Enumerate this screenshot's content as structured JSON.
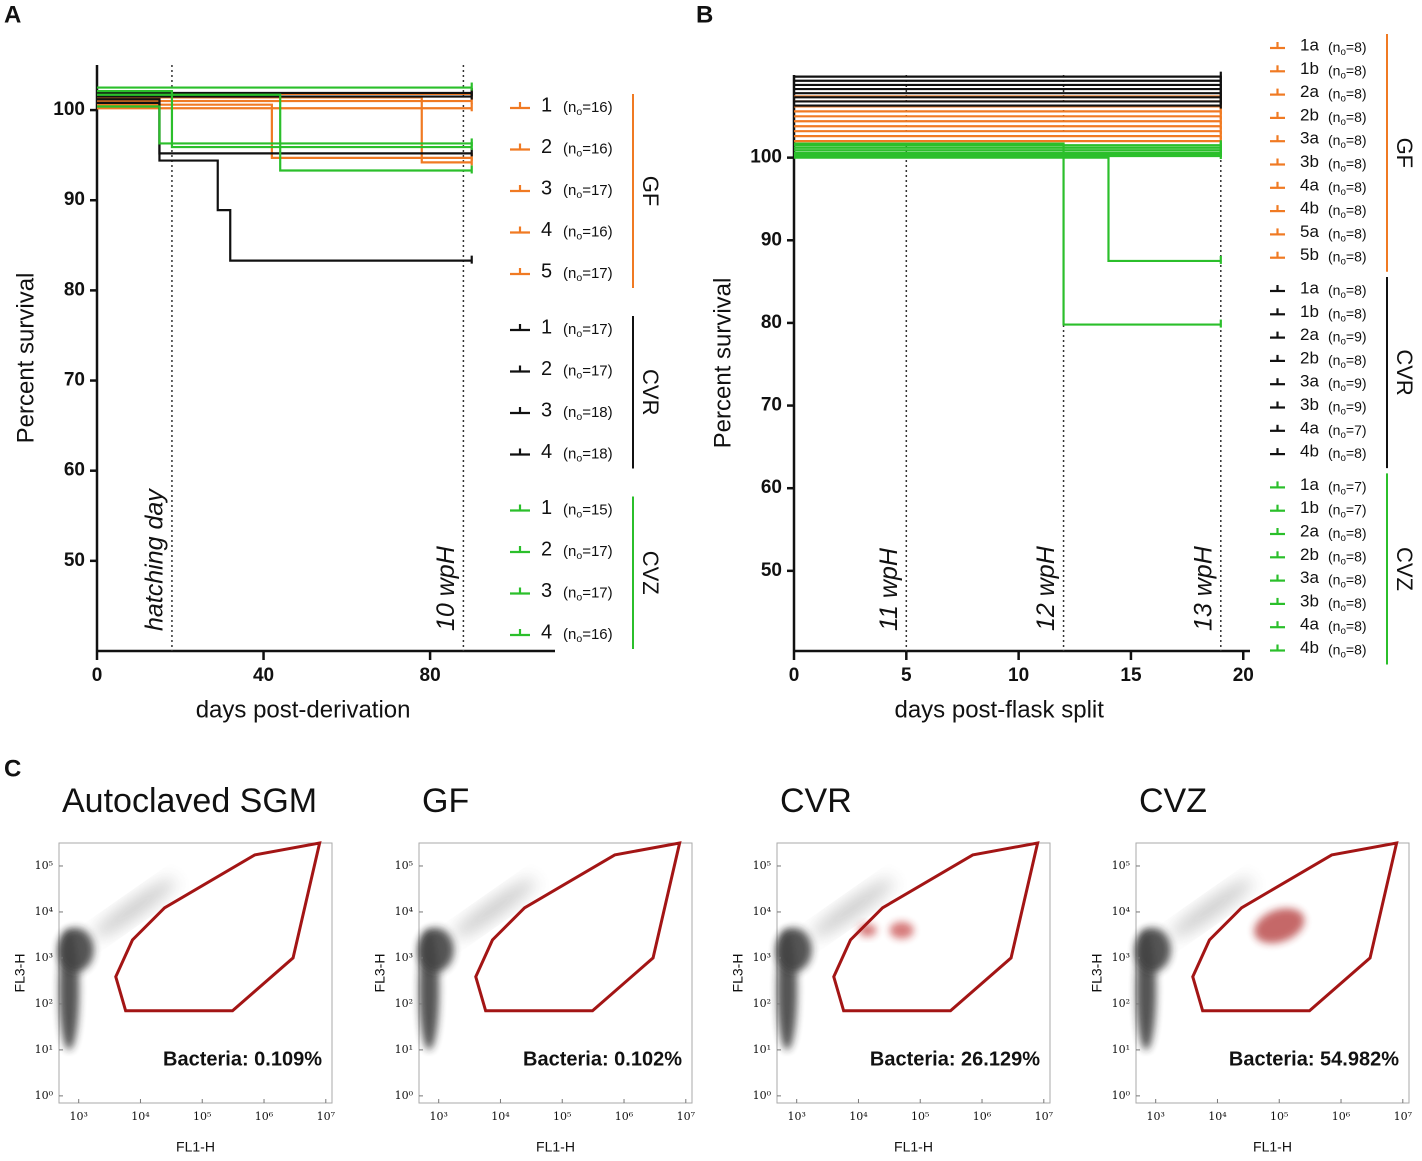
{
  "panel_labels": [
    "A",
    "B",
    "C"
  ],
  "chart_data": [
    {
      "type": "survival",
      "xlabel": "days post-derivation",
      "ylabel": "Percent survival",
      "xlim": [
        0,
        110
      ],
      "ylim": [
        40,
        105
      ],
      "xticks": [
        0,
        40,
        80
      ],
      "yticks": [
        50,
        60,
        70,
        80,
        90,
        100
      ],
      "annotations": [
        {
          "x": 18,
          "label": "hatching day"
        },
        {
          "x": 88,
          "label": "10 wpH"
        }
      ],
      "groups": [
        {
          "name": "GF",
          "color": "#f07a23",
          "series": [
            {
              "name": "1",
              "n_label": "(no=16)",
              "x": [
                0,
                90
              ],
              "values": [
                100.2,
                100.2
              ]
            },
            {
              "name": "2",
              "n_label": "(no=16)",
              "x": [
                0,
                42,
                90
              ],
              "values": [
                100.6,
                94.7,
                94.7
              ]
            },
            {
              "name": "3",
              "n_label": "(no=17)",
              "x": [
                0,
                90
              ],
              "values": [
                101,
                101
              ]
            },
            {
              "name": "4",
              "n_label": "(no=16)",
              "x": [
                0,
                78,
                90
              ],
              "values": [
                101.4,
                94.2,
                94.2
              ]
            },
            {
              "name": "5",
              "n_label": "(no=17)",
              "x": [
                0,
                90
              ],
              "values": [
                101.8,
                101.8
              ]
            }
          ]
        },
        {
          "name": "CVR",
          "color": "#111111",
          "series": [
            {
              "name": "1",
              "n_label": "(no=17)",
              "x": [
                0,
                90
              ],
              "values": [
                101.9,
                101.9
              ]
            },
            {
              "name": "2",
              "n_label": "(no=17)",
              "x": [
                0,
                90
              ],
              "values": [
                101.5,
                101.5
              ]
            },
            {
              "name": "3",
              "n_label": "(no=18)",
              "x": [
                0,
                15,
                90
              ],
              "values": [
                101.2,
                95.2,
                95.2
              ]
            },
            {
              "name": "4",
              "n_label": "(no=18)",
              "x": [
                0,
                15,
                29,
                32,
                90
              ],
              "values": [
                100.8,
                94.4,
                88.9,
                83.3,
                83.3
              ]
            }
          ]
        },
        {
          "name": "CVZ",
          "color": "#2bbf2b",
          "series": [
            {
              "name": "1",
              "n_label": "(no=15)",
              "x": [
                0,
                90
              ],
              "values": [
                102.5,
                102.5
              ]
            },
            {
              "name": "2",
              "n_label": "(no=17)",
              "x": [
                0,
                18,
                90
              ],
              "values": [
                102.1,
                95.9,
                95.9
              ]
            },
            {
              "name": "3",
              "n_label": "(no=17)",
              "x": [
                0,
                44,
                90
              ],
              "values": [
                101.7,
                93.3,
                93.3
              ]
            },
            {
              "name": "4",
              "n_label": "(no=16)",
              "x": [
                0,
                15,
                90
              ],
              "values": [
                100.4,
                96.3,
                96.3
              ]
            }
          ]
        }
      ]
    },
    {
      "type": "survival",
      "xlabel": "days post-flask split",
      "ylabel": "Percent survival",
      "xlim": [
        0,
        20.3
      ],
      "ylim": [
        40.3,
        110
      ],
      "xticks": [
        0,
        5,
        10,
        15,
        20
      ],
      "yticks": [
        50,
        60,
        70,
        80,
        90,
        100
      ],
      "annotations": [
        {
          "x": 5,
          "label": "11 wpH"
        },
        {
          "x": 12,
          "label": "12 wpH"
        },
        {
          "x": 19,
          "label": "13 wpH"
        }
      ],
      "groups": [
        {
          "name": "GF",
          "color": "#f07a23",
          "series": [
            {
              "name": "1a",
              "n_label": "(no=8)",
              "x": [
                0,
                19
              ],
              "values": [
                107.4,
                107.4
              ]
            },
            {
              "name": "1b",
              "n_label": "(no=8)",
              "x": [
                0,
                19
              ],
              "values": [
                106.8,
                106.8
              ]
            },
            {
              "name": "2a",
              "n_label": "(no=8)",
              "x": [
                0,
                19
              ],
              "values": [
                106.2,
                106.2
              ]
            },
            {
              "name": "2b",
              "n_label": "(no=8)",
              "x": [
                0,
                19
              ],
              "values": [
                105.6,
                105.6
              ]
            },
            {
              "name": "3a",
              "n_label": "(no=8)",
              "x": [
                0,
                19
              ],
              "values": [
                105,
                105
              ]
            },
            {
              "name": "3b",
              "n_label": "(no=8)",
              "x": [
                0,
                19
              ],
              "values": [
                104.4,
                104.4
              ]
            },
            {
              "name": "4a",
              "n_label": "(no=8)",
              "x": [
                0,
                19
              ],
              "values": [
                103.8,
                103.8
              ]
            },
            {
              "name": "4b",
              "n_label": "(no=8)",
              "x": [
                0,
                19
              ],
              "values": [
                103.2,
                103.2
              ]
            },
            {
              "name": "5a",
              "n_label": "(no=8)",
              "x": [
                0,
                19
              ],
              "values": [
                102.6,
                102.6
              ]
            },
            {
              "name": "5b",
              "n_label": "(no=8)",
              "x": [
                0,
                19
              ],
              "values": [
                102,
                102
              ]
            }
          ]
        },
        {
          "name": "CVR",
          "color": "#111111",
          "series": [
            {
              "name": "1a",
              "n_label": "(no=8)",
              "x": [
                0,
                19
              ],
              "values": [
                109.8,
                109.8
              ]
            },
            {
              "name": "1b",
              "n_label": "(no=8)",
              "x": [
                0,
                19
              ],
              "values": [
                109.3,
                109.3
              ]
            },
            {
              "name": "2a",
              "n_label": "(no=9)",
              "x": [
                0,
                19
              ],
              "values": [
                108.8,
                108.8
              ]
            },
            {
              "name": "2b",
              "n_label": "(no=8)",
              "x": [
                0,
                19
              ],
              "values": [
                108.3,
                108.3
              ]
            },
            {
              "name": "3a",
              "n_label": "(no=9)",
              "x": [
                0,
                19
              ],
              "values": [
                107.8,
                107.8
              ]
            },
            {
              "name": "3b",
              "n_label": "(no=9)",
              "x": [
                0,
                19
              ],
              "values": [
                107.3,
                107.3
              ]
            },
            {
              "name": "4a",
              "n_label": "(no=7)",
              "x": [
                0,
                19
              ],
              "values": [
                106.8,
                106.8
              ]
            },
            {
              "name": "4b",
              "n_label": "(no=8)",
              "x": [
                0,
                19
              ],
              "values": [
                106.3,
                106.3
              ]
            }
          ]
        },
        {
          "name": "CVZ",
          "color": "#2bbf2b",
          "series": [
            {
              "name": "1a",
              "n_label": "(no=7)",
              "x": [
                0,
                12,
                19
              ],
              "values": [
                101.7,
                79.8,
                79.8
              ]
            },
            {
              "name": "1b",
              "n_label": "(no=7)",
              "x": [
                0,
                14,
                19
              ],
              "values": [
                100,
                87.5,
                87.5
              ]
            },
            {
              "name": "2a",
              "n_label": "(no=8)",
              "x": [
                0,
                19
              ],
              "values": [
                101.5,
                101.5
              ]
            },
            {
              "name": "2b",
              "n_label": "(no=8)",
              "x": [
                0,
                19
              ],
              "values": [
                101.2,
                101.2
              ]
            },
            {
              "name": "3a",
              "n_label": "(no=8)",
              "x": [
                0,
                19
              ],
              "values": [
                100.9,
                100.9
              ]
            },
            {
              "name": "3b",
              "n_label": "(no=8)",
              "x": [
                0,
                19
              ],
              "values": [
                100.6,
                100.6
              ]
            },
            {
              "name": "4a",
              "n_label": "(no=8)",
              "x": [
                0,
                19
              ],
              "values": [
                100.4,
                100.4
              ]
            },
            {
              "name": "4b",
              "n_label": "(no=8)",
              "x": [
                0,
                19
              ],
              "values": [
                100.2,
                100.2
              ]
            }
          ]
        }
      ]
    },
    {
      "type": "flow",
      "title": "Autoclaved SGM",
      "xlabel": "FL1-H",
      "ylabel": "FL3-H",
      "log": true,
      "annotation": "Bacteria: 0.109%",
      "color": "#a31515",
      "xlim": [
        480,
        12600000
      ],
      "ylim": [
        0.7,
        316000
      ],
      "xticks": [
        {
          "value": 1000,
          "label": "10³"
        },
        {
          "value": 10000,
          "label": "10⁴"
        },
        {
          "value": 100000,
          "label": "10⁵"
        },
        {
          "value": 1000000,
          "label": "10⁶"
        },
        {
          "value": 10000000,
          "label": "10⁷"
        }
      ],
      "yticks": [
        {
          "value": 1,
          "label": "10⁰"
        },
        {
          "value": 10,
          "label": "10¹"
        },
        {
          "value": 100,
          "label": "10²"
        },
        {
          "value": 1000,
          "label": "10³"
        },
        {
          "value": 10000,
          "label": "10⁴"
        },
        {
          "value": 100000,
          "label": "10⁵"
        }
      ],
      "gate": {
        "x": [
          3981,
          7413,
          24547,
          707946,
          7943282,
          2951209,
          309030,
          5754
        ],
        "y": [
          389,
          2455,
          12303,
          173780,
          316228,
          1000,
          71,
          71
        ]
      }
    },
    {
      "type": "flow",
      "title": "GF",
      "xlabel": "FL1-H",
      "ylabel": "FL3-H",
      "log": true,
      "annotation": "Bacteria: 0.102%",
      "color": "#a31515",
      "xlim": [
        480,
        12600000
      ],
      "ylim": [
        0.7,
        316000
      ],
      "xticks": [
        {
          "value": 1000,
          "label": "10³"
        },
        {
          "value": 10000,
          "label": "10⁴"
        },
        {
          "value": 100000,
          "label": "10⁵"
        },
        {
          "value": 1000000,
          "label": "10⁶"
        },
        {
          "value": 10000000,
          "label": "10⁷"
        }
      ],
      "yticks": [
        {
          "value": 1,
          "label": "10⁰"
        },
        {
          "value": 10,
          "label": "10¹"
        },
        {
          "value": 100,
          "label": "10²"
        },
        {
          "value": 1000,
          "label": "10³"
        },
        {
          "value": 10000,
          "label": "10⁴"
        },
        {
          "value": 100000,
          "label": "10⁵"
        }
      ],
      "gate": {
        "x": [
          3981,
          7413,
          24547,
          707946,
          7943282,
          2951209,
          309030,
          5754
        ],
        "y": [
          389,
          2455,
          12303,
          173780,
          316228,
          1000,
          71,
          71
        ]
      }
    },
    {
      "type": "flow",
      "title": "CVR",
      "xlabel": "FL1-H",
      "ylabel": "FL3-H",
      "log": true,
      "annotation": "Bacteria: 26.129%",
      "color": "#a31515",
      "xlim": [
        480,
        12600000
      ],
      "ylim": [
        0.7,
        316000
      ],
      "xticks": [
        {
          "value": 1000,
          "label": "10³"
        },
        {
          "value": 10000,
          "label": "10⁴"
        },
        {
          "value": 100000,
          "label": "10⁵"
        },
        {
          "value": 1000000,
          "label": "10⁶"
        },
        {
          "value": 10000000,
          "label": "10⁷"
        }
      ],
      "yticks": [
        {
          "value": 1,
          "label": "10⁰"
        },
        {
          "value": 10,
          "label": "10¹"
        },
        {
          "value": 100,
          "label": "10²"
        },
        {
          "value": 1000,
          "label": "10³"
        },
        {
          "value": 10000,
          "label": "10⁴"
        },
        {
          "value": 100000,
          "label": "10⁵"
        }
      ],
      "gate": {
        "x": [
          3981,
          7413,
          24547,
          707946,
          7943282,
          2951209,
          309030,
          5754
        ],
        "y": [
          389,
          2455,
          12303,
          173780,
          316228,
          1000,
          71,
          71
        ]
      }
    },
    {
      "type": "flow",
      "title": "CVZ",
      "xlabel": "FL1-H",
      "ylabel": "FL3-H",
      "log": true,
      "annotation": "Bacteria: 54.982%",
      "color": "#a31515",
      "xlim": [
        480,
        12600000
      ],
      "ylim": [
        0.7,
        316000
      ],
      "xticks": [
        {
          "value": 1000,
          "label": "10³"
        },
        {
          "value": 10000,
          "label": "10⁴"
        },
        {
          "value": 100000,
          "label": "10⁵"
        },
        {
          "value": 1000000,
          "label": "10⁶"
        },
        {
          "value": 10000000,
          "label": "10⁷"
        }
      ],
      "yticks": [
        {
          "value": 1,
          "label": "10⁰"
        },
        {
          "value": 10,
          "label": "10¹"
        },
        {
          "value": 100,
          "label": "10²"
        },
        {
          "value": 1000,
          "label": "10³"
        },
        {
          "value": 10000,
          "label": "10⁴"
        },
        {
          "value": 100000,
          "label": "10⁵"
        }
      ],
      "gate": {
        "x": [
          3981,
          7413,
          24547,
          707946,
          7943282,
          2951209,
          309030,
          5754
        ],
        "y": [
          389,
          2455,
          12303,
          173780,
          316228,
          1000,
          71,
          71
        ]
      }
    }
  ]
}
